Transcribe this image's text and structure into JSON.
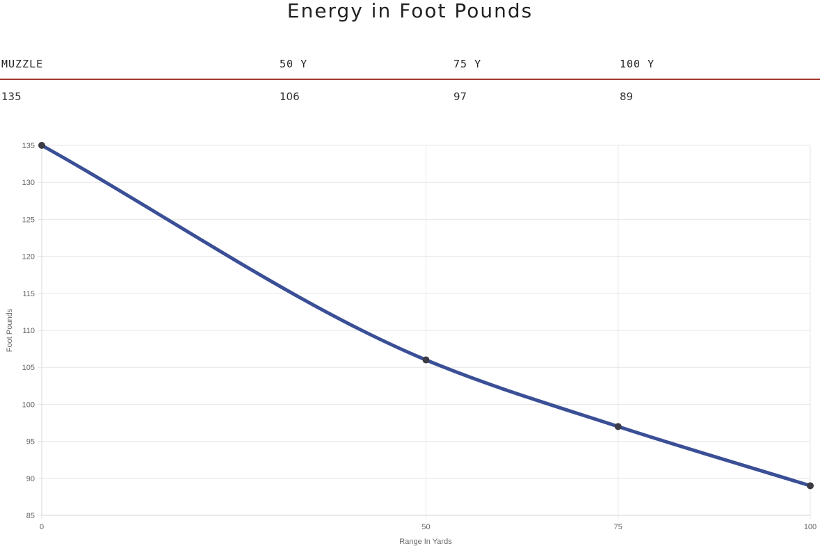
{
  "page": {
    "title": "Energy in Foot Pounds"
  },
  "table": {
    "headers": [
      "MUZZLE",
      "50 Y",
      "75 Y",
      "100 Y"
    ],
    "values": [
      "135",
      "106",
      "97",
      "89"
    ]
  },
  "colors": {
    "line": "#3a4f96",
    "point": "#3c3c46",
    "rule": "#a33a2e",
    "grid": "#e6e6e6"
  },
  "chart_data": {
    "type": "line",
    "title": "",
    "xlabel": "Range In Yards",
    "ylabel": "Foot Pounds",
    "x": [
      0,
      50,
      75,
      100
    ],
    "y": [
      135,
      106,
      97,
      89
    ],
    "xticks": [
      "0",
      "50",
      "75",
      "100"
    ],
    "yticks": [
      85,
      90,
      95,
      100,
      105,
      110,
      115,
      120,
      125,
      130,
      135
    ],
    "xlim": [
      0,
      100
    ],
    "ylim": [
      85,
      135
    ],
    "grid": true,
    "legend": "none"
  }
}
